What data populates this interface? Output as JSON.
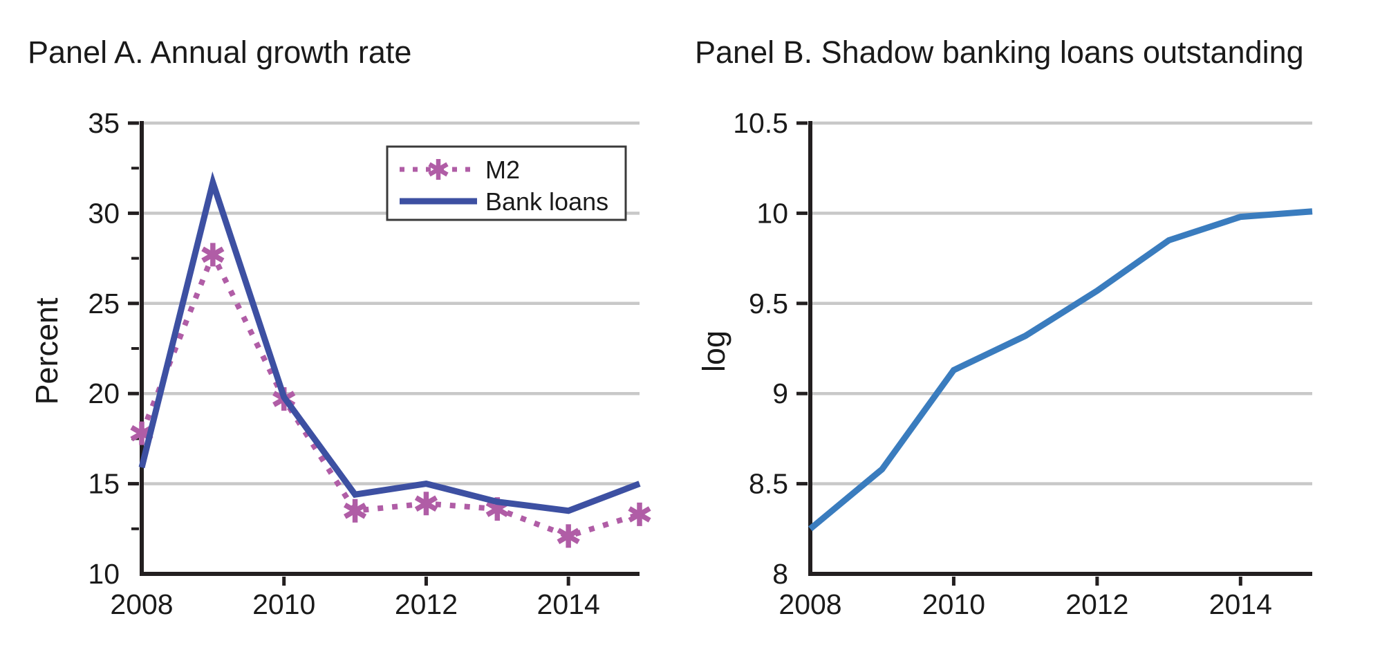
{
  "style": {
    "background": "#ffffff",
    "grid_color": "#c8c8c8",
    "axis_color": "#231f20",
    "text_color": "#1a1a1a",
    "legend_border_color": "#3a3a3a"
  },
  "chart_data": [
    {
      "type": "line",
      "title": "Panel A. Annual growth rate",
      "xlabel": "",
      "ylabel": "Percent",
      "x": [
        2008,
        2009,
        2010,
        2011,
        2012,
        2013,
        2014,
        2015
      ],
      "series": [
        {
          "name": "M2",
          "values": [
            17.8,
            27.7,
            19.7,
            13.5,
            13.9,
            13.6,
            12.1,
            13.3
          ],
          "color": "#b05da6",
          "line_style": "dotted",
          "marker": "asterisk"
        },
        {
          "name": "Bank loans",
          "values": [
            15.9,
            31.7,
            19.8,
            14.4,
            15.0,
            14.0,
            13.5,
            15.0
          ],
          "color": "#3d50a2",
          "line_style": "solid",
          "marker": "none"
        }
      ],
      "xlim": [
        2008,
        2015
      ],
      "ylim": [
        10,
        35
      ],
      "yticks": [
        10,
        15,
        20,
        25,
        30,
        35
      ],
      "ytick_labels": [
        "10",
        "15",
        "20",
        "25",
        "30",
        "35"
      ],
      "y_minor_ticks": [
        12.5,
        17.5,
        22.5,
        27.5,
        32.5
      ],
      "x_tick_marks": [
        2010,
        2012,
        2014
      ],
      "x_tick_labels": [
        [
          2008,
          "2008"
        ],
        [
          2010,
          "2010"
        ],
        [
          2012,
          "2012"
        ],
        [
          2014,
          "2014"
        ]
      ],
      "grid": true,
      "legend": {
        "position": "upper right",
        "entries": [
          "M2",
          "Bank loans"
        ]
      }
    },
    {
      "type": "line",
      "title": "Panel B. Shadow banking loans outstanding",
      "xlabel": "",
      "ylabel": "log",
      "x": [
        2008,
        2009,
        2010,
        2011,
        2012,
        2013,
        2014,
        2015
      ],
      "series": [
        {
          "name": "Shadow banking loans outstanding",
          "values": [
            8.25,
            8.58,
            9.13,
            9.32,
            9.57,
            9.85,
            9.98,
            10.01
          ],
          "color": "#3a7cbe",
          "line_style": "solid",
          "marker": "none"
        }
      ],
      "xlim": [
        2008,
        2015
      ],
      "ylim": [
        8,
        10.5
      ],
      "yticks": [
        8,
        8.5,
        9,
        9.5,
        10,
        10.5
      ],
      "ytick_labels": [
        "8",
        "8.5",
        "9",
        "9.5",
        "10",
        "10.5"
      ],
      "y_minor_ticks": [],
      "x_tick_marks": [
        2010,
        2012,
        2014
      ],
      "x_tick_labels": [
        [
          2008,
          "2008"
        ],
        [
          2010,
          "2010"
        ],
        [
          2012,
          "2012"
        ],
        [
          2014,
          "2014"
        ]
      ],
      "grid": true,
      "legend": null
    }
  ]
}
